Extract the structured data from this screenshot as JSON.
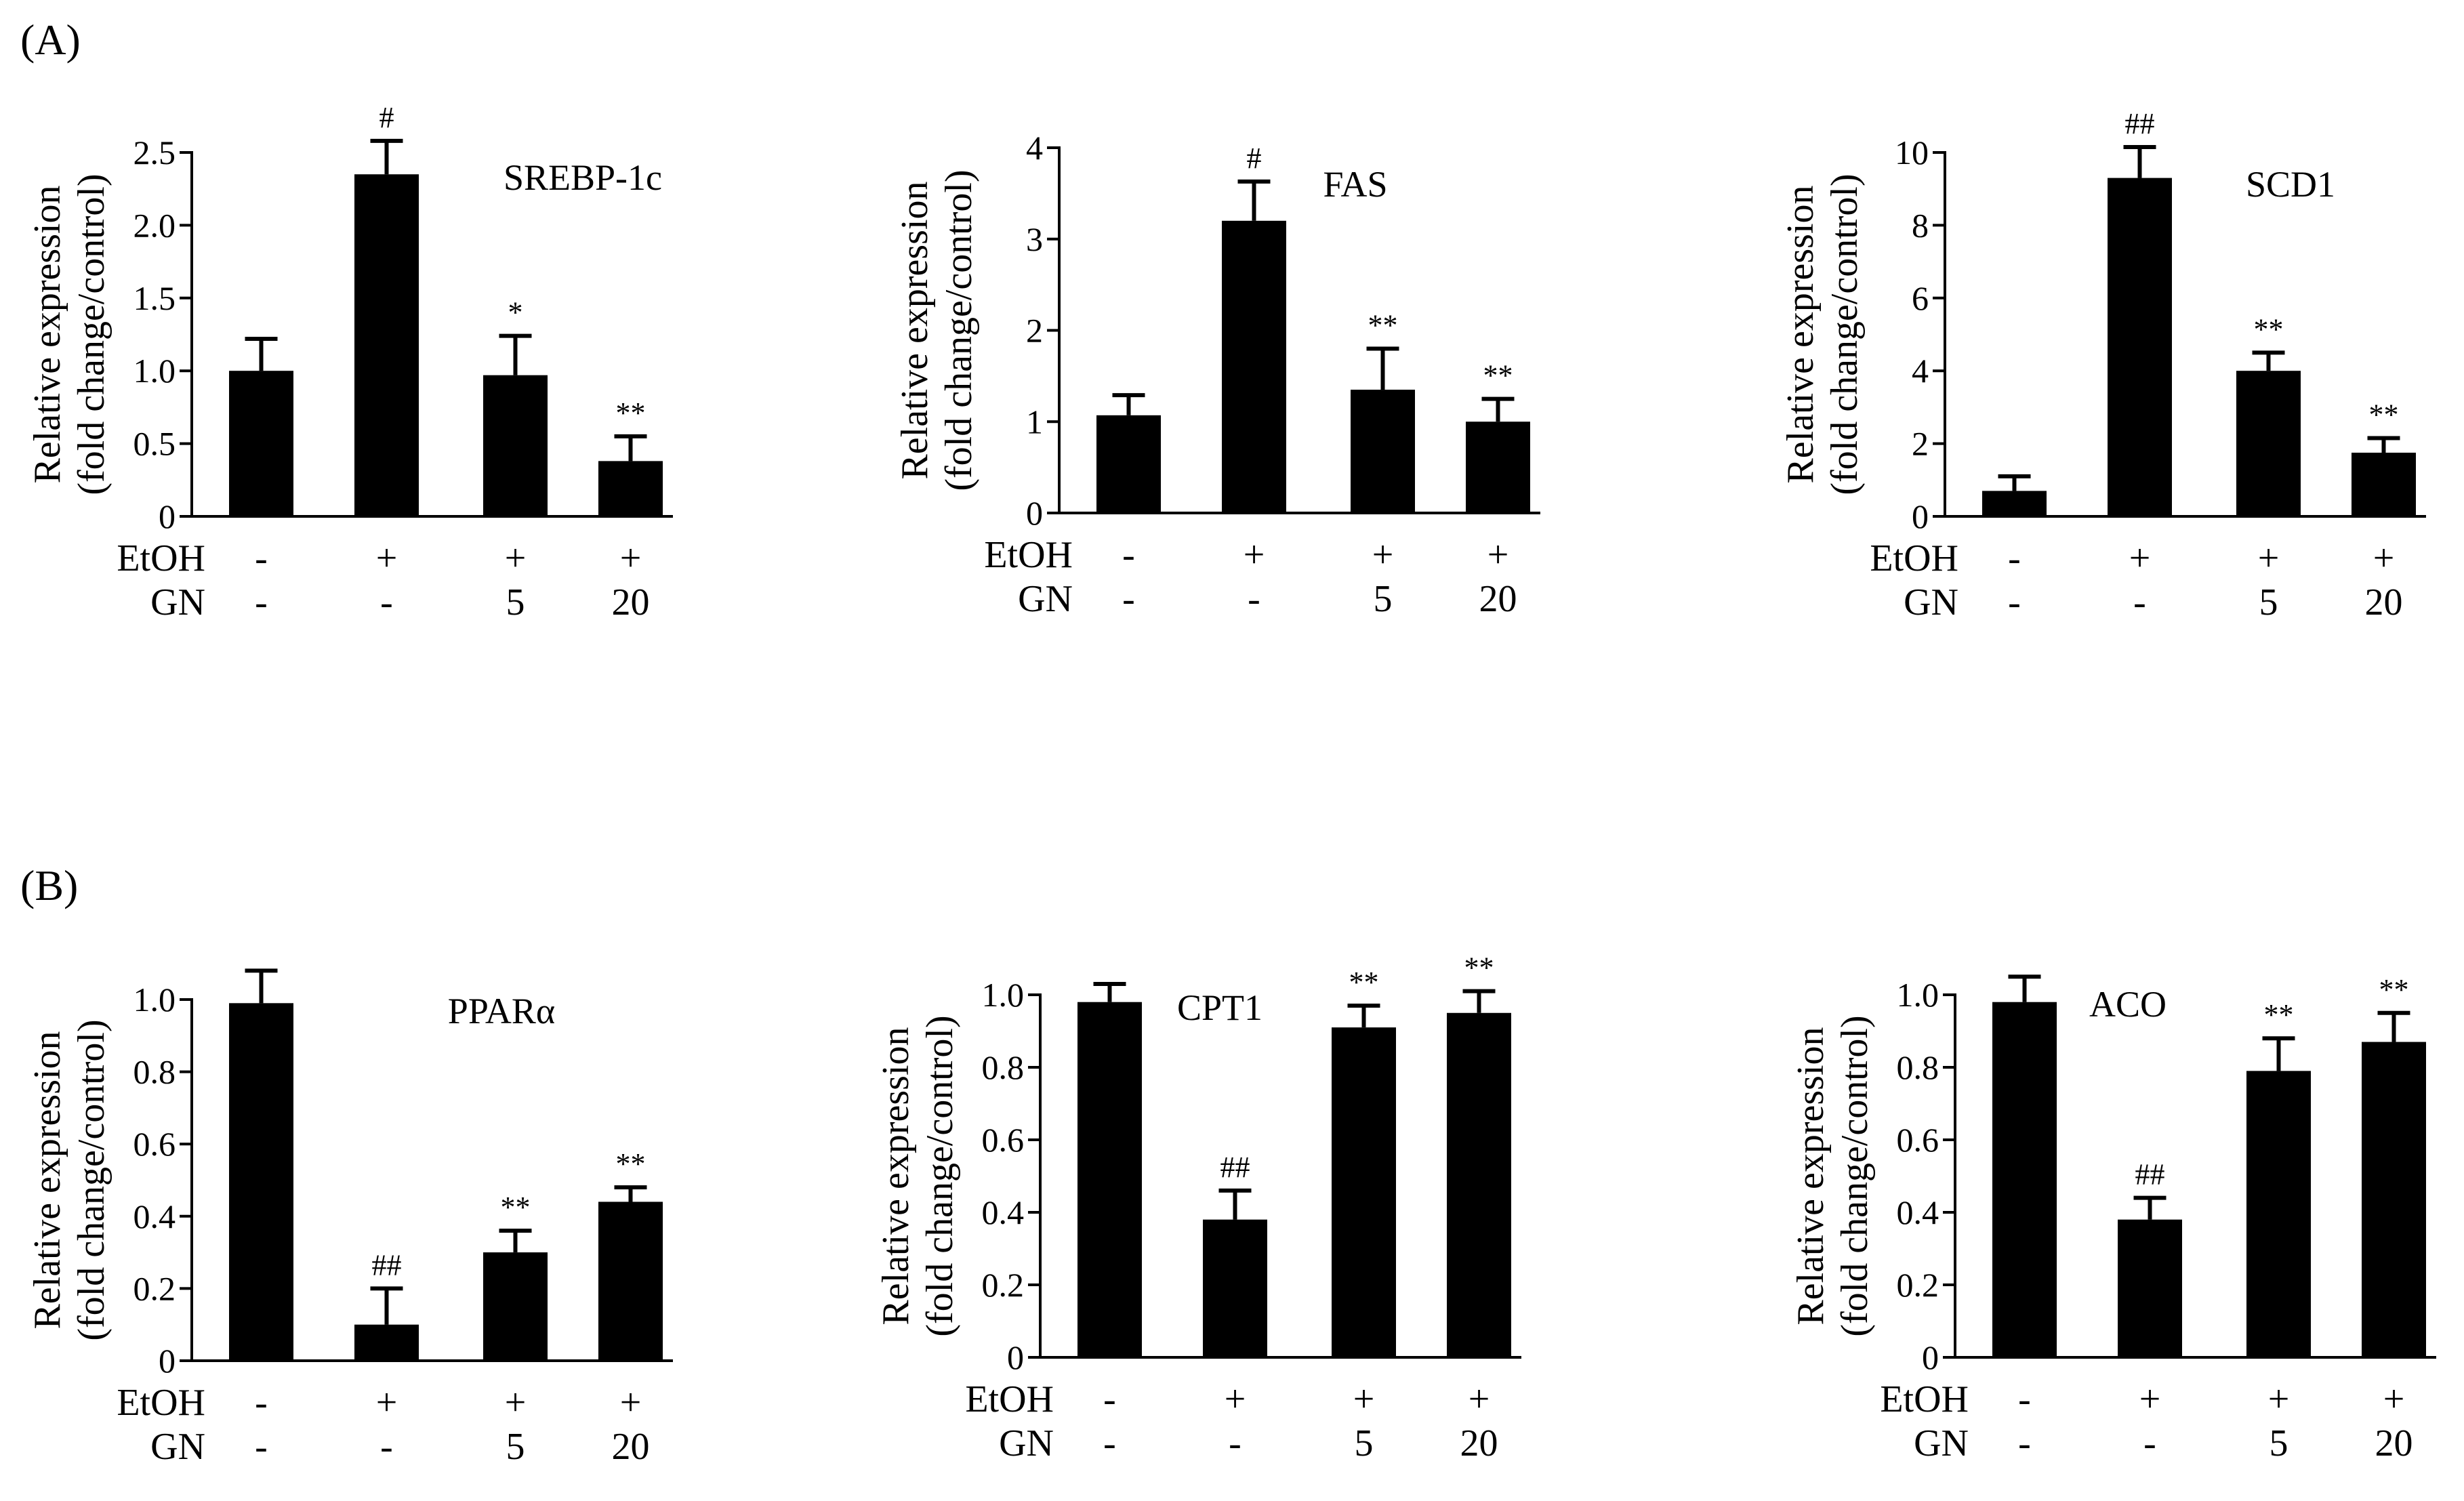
{
  "panels": [
    {
      "label": "(A)"
    },
    {
      "label": "(B)"
    }
  ],
  "chart_data": [
    {
      "type": "bar",
      "panel": "(A)",
      "title": "SREBP-1c",
      "xlabel": "",
      "ylabel_lines": [
        "Relative expression",
        "(fold change/control)"
      ],
      "ylim": [
        0,
        2.5
      ],
      "yticks": [
        "0",
        "0.5",
        "1.0",
        "1.5",
        "2.0",
        "2.5"
      ],
      "yticks_values": [
        0,
        0.5,
        1.0,
        1.5,
        2.0,
        2.5
      ],
      "values": [
        1.0,
        2.35,
        0.97,
        0.38
      ],
      "errors": [
        0.22,
        0.23,
        0.27,
        0.17
      ],
      "significance": [
        "",
        "#",
        "*",
        "**"
      ],
      "row_labels": [
        "EtOH",
        "GN"
      ],
      "etoh": [
        "-",
        "+",
        "+",
        "+"
      ],
      "gn": [
        "-",
        "-",
        "5",
        "20"
      ]
    },
    {
      "type": "bar",
      "panel": "(A)",
      "title": "FAS",
      "xlabel": "",
      "ylabel_lines": [
        "Relative expression",
        "(fold change/control)"
      ],
      "ylim": [
        0,
        4
      ],
      "yticks": [
        "0",
        "1",
        "2",
        "3",
        "4"
      ],
      "yticks_values": [
        0,
        1,
        2,
        3,
        4
      ],
      "values": [
        1.07,
        3.2,
        1.35,
        1.0
      ],
      "errors": [
        0.22,
        0.43,
        0.45,
        0.25
      ],
      "significance": [
        "",
        "#",
        "**",
        "**"
      ],
      "row_labels": [
        "EtOH",
        "GN"
      ],
      "etoh": [
        "-",
        "+",
        "+",
        "+"
      ],
      "gn": [
        "-",
        "-",
        "5",
        "20"
      ]
    },
    {
      "type": "bar",
      "panel": "(A)",
      "title": "SCD1",
      "xlabel": "",
      "ylabel_lines": [
        "Relative expression",
        "(fold change/control)"
      ],
      "ylim": [
        0,
        10
      ],
      "yticks": [
        "0",
        "2",
        "4",
        "6",
        "8",
        "10"
      ],
      "yticks_values": [
        0,
        2,
        4,
        6,
        8,
        10
      ],
      "values": [
        0.7,
        9.3,
        4.0,
        1.75
      ],
      "errors": [
        0.4,
        0.85,
        0.5,
        0.4
      ],
      "significance": [
        "",
        "##",
        "**",
        "**"
      ],
      "row_labels": [
        "EtOH",
        "GN"
      ],
      "etoh": [
        "-",
        "+",
        "+",
        "+"
      ],
      "gn": [
        "-",
        "-",
        "5",
        "20"
      ]
    },
    {
      "type": "bar",
      "panel": "(B)",
      "title": "PPARα",
      "xlabel": "",
      "ylabel_lines": [
        "Relative expression",
        "(fold change/control)"
      ],
      "ylim": [
        0,
        1.0
      ],
      "yticks": [
        "0",
        "0.2",
        "0.4",
        "0.6",
        "0.8",
        "1.0"
      ],
      "yticks_values": [
        0,
        0.2,
        0.4,
        0.6,
        0.8,
        1.0
      ],
      "values": [
        0.99,
        0.1,
        0.3,
        0.44
      ],
      "errors": [
        0.09,
        0.1,
        0.06,
        0.04
      ],
      "significance": [
        "",
        "##",
        "**",
        "**"
      ],
      "row_labels": [
        "EtOH",
        "GN"
      ],
      "etoh": [
        "-",
        "+",
        "+",
        "+"
      ],
      "gn": [
        "-",
        "-",
        "5",
        "20"
      ]
    },
    {
      "type": "bar",
      "panel": "(B)",
      "title": "CPT1",
      "xlabel": "",
      "ylabel_lines": [
        "Relative expression",
        "(fold change/control)"
      ],
      "ylim": [
        0,
        1.0
      ],
      "yticks": [
        "0",
        "0.2",
        "0.4",
        "0.6",
        "0.8",
        "1.0"
      ],
      "yticks_values": [
        0,
        0.2,
        0.4,
        0.6,
        0.8,
        1.0
      ],
      "values": [
        0.98,
        0.38,
        0.91,
        0.95
      ],
      "errors": [
        0.05,
        0.08,
        0.06,
        0.06
      ],
      "significance": [
        "",
        "##",
        "**",
        "**"
      ],
      "row_labels": [
        "EtOH",
        "GN"
      ],
      "etoh": [
        "-",
        "+",
        "+",
        "+"
      ],
      "gn": [
        "-",
        "-",
        "5",
        "20"
      ]
    },
    {
      "type": "bar",
      "panel": "(B)",
      "title": "ACO",
      "xlabel": "",
      "ylabel_lines": [
        "Relative expression",
        "(fold change/control)"
      ],
      "ylim": [
        0,
        1.0
      ],
      "yticks": [
        "0",
        "0.2",
        "0.4",
        "0.6",
        "0.8",
        "1.0"
      ],
      "yticks_values": [
        0,
        0.2,
        0.4,
        0.6,
        0.8,
        1.0
      ],
      "values": [
        0.98,
        0.38,
        0.79,
        0.87
      ],
      "errors": [
        0.07,
        0.06,
        0.09,
        0.08
      ],
      "significance": [
        "",
        "##",
        "**",
        "**"
      ],
      "row_labels": [
        "EtOH",
        "GN"
      ],
      "etoh": [
        "-",
        "+",
        "+",
        "+"
      ],
      "gn": [
        "-",
        "-",
        "5",
        "20"
      ]
    }
  ]
}
